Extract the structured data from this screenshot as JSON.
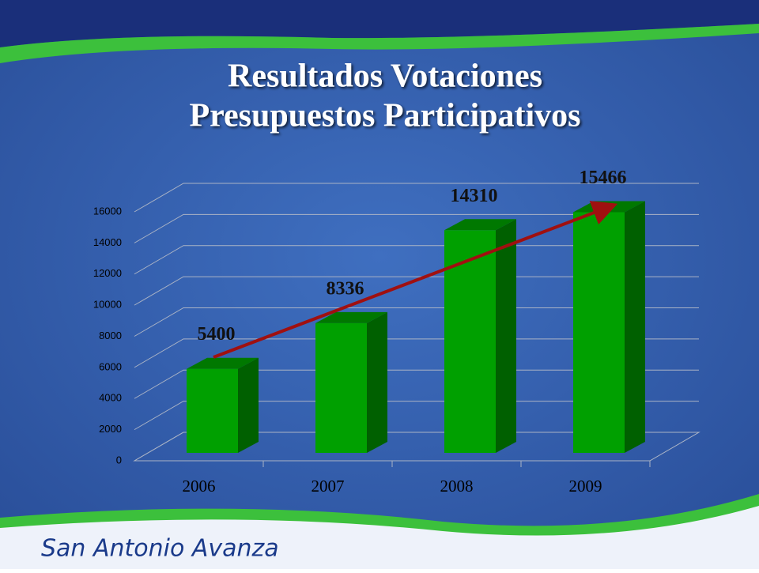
{
  "title": [
    "Resultados Votaciones",
    "Presupuestos Participativos"
  ],
  "footer": "San Antonio Avanza",
  "chart_data": {
    "type": "bar3d",
    "categories": [
      "2006",
      "2007",
      "2008",
      "2009"
    ],
    "values": [
      5400,
      8336,
      14310,
      15466
    ],
    "color": "#00a000",
    "ylim": [
      0,
      16000
    ],
    "yticks": [
      0,
      2000,
      4000,
      6000,
      8000,
      10000,
      12000,
      14000,
      16000
    ],
    "grid": true
  }
}
